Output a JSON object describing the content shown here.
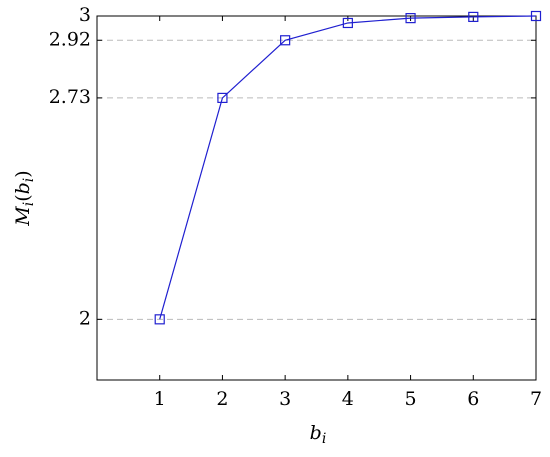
{
  "chart_data": {
    "type": "line",
    "xlabel": [
      "b",
      "i"
    ],
    "ylabel": [
      "M",
      "i",
      "(",
      "b",
      "i",
      ")"
    ],
    "x": [
      1,
      2,
      3,
      4,
      5,
      6,
      7
    ],
    "series": [
      {
        "color": "#2020d0",
        "values": [
          2,
          2.73,
          2.92,
          2.977,
          2.993,
          2.997,
          3
        ]
      }
    ],
    "xlim": [
      0,
      7
    ],
    "ylim": [
      1.8,
      3
    ],
    "xticks": [
      1,
      2,
      3,
      4,
      5,
      6,
      7
    ],
    "yticks": [
      2,
      2.73,
      2.92,
      3
    ],
    "grid": true
  }
}
